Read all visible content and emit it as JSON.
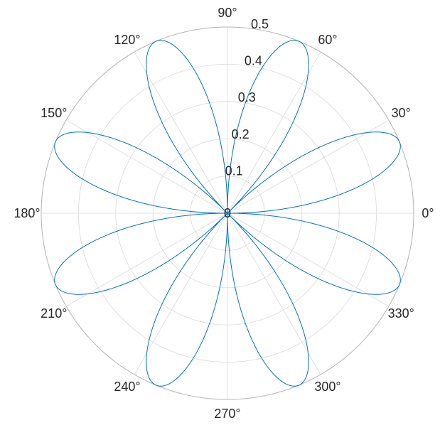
{
  "chart_data": {
    "type": "line",
    "coordinate_system": "polar",
    "function_description": "rose curve",
    "angle_ticks": [
      {
        "angle": 0,
        "label": "0°"
      },
      {
        "angle": 30,
        "label": "30°"
      },
      {
        "angle": 60,
        "label": "60°"
      },
      {
        "angle": 90,
        "label": "90°"
      },
      {
        "angle": 120,
        "label": "120°"
      },
      {
        "angle": 150,
        "label": "150°"
      },
      {
        "angle": 180,
        "label": "180°"
      },
      {
        "angle": 210,
        "label": "210°"
      },
      {
        "angle": 240,
        "label": "240°"
      },
      {
        "angle": 270,
        "label": "270°"
      },
      {
        "angle": 300,
        "label": "300°"
      },
      {
        "angle": 330,
        "label": "330°"
      }
    ],
    "radial_ticks": [
      {
        "value": 0,
        "label": "0"
      },
      {
        "value": 0.1,
        "label": "0.1"
      },
      {
        "value": 0.2,
        "label": "0.2"
      },
      {
        "value": 0.3,
        "label": "0.3"
      },
      {
        "value": 0.4,
        "label": "0.4"
      },
      {
        "value": 0.5,
        "label": "0.5"
      }
    ],
    "rlim": [
      0,
      0.5
    ],
    "grid": true,
    "series": [
      {
        "equation": "r = 0.5 * |sin(4θ)|",
        "amplitude": 0.5,
        "petals": 8,
        "petal_peak_angles_deg": [
          22.5,
          67.5,
          112.5,
          157.5,
          202.5,
          247.5,
          292.5,
          337.5
        ],
        "color": "#0072BD"
      }
    ],
    "colors": {
      "grid": "#d9d9d9",
      "outer_ring": "#b3b3b3",
      "text": "#262626"
    }
  }
}
